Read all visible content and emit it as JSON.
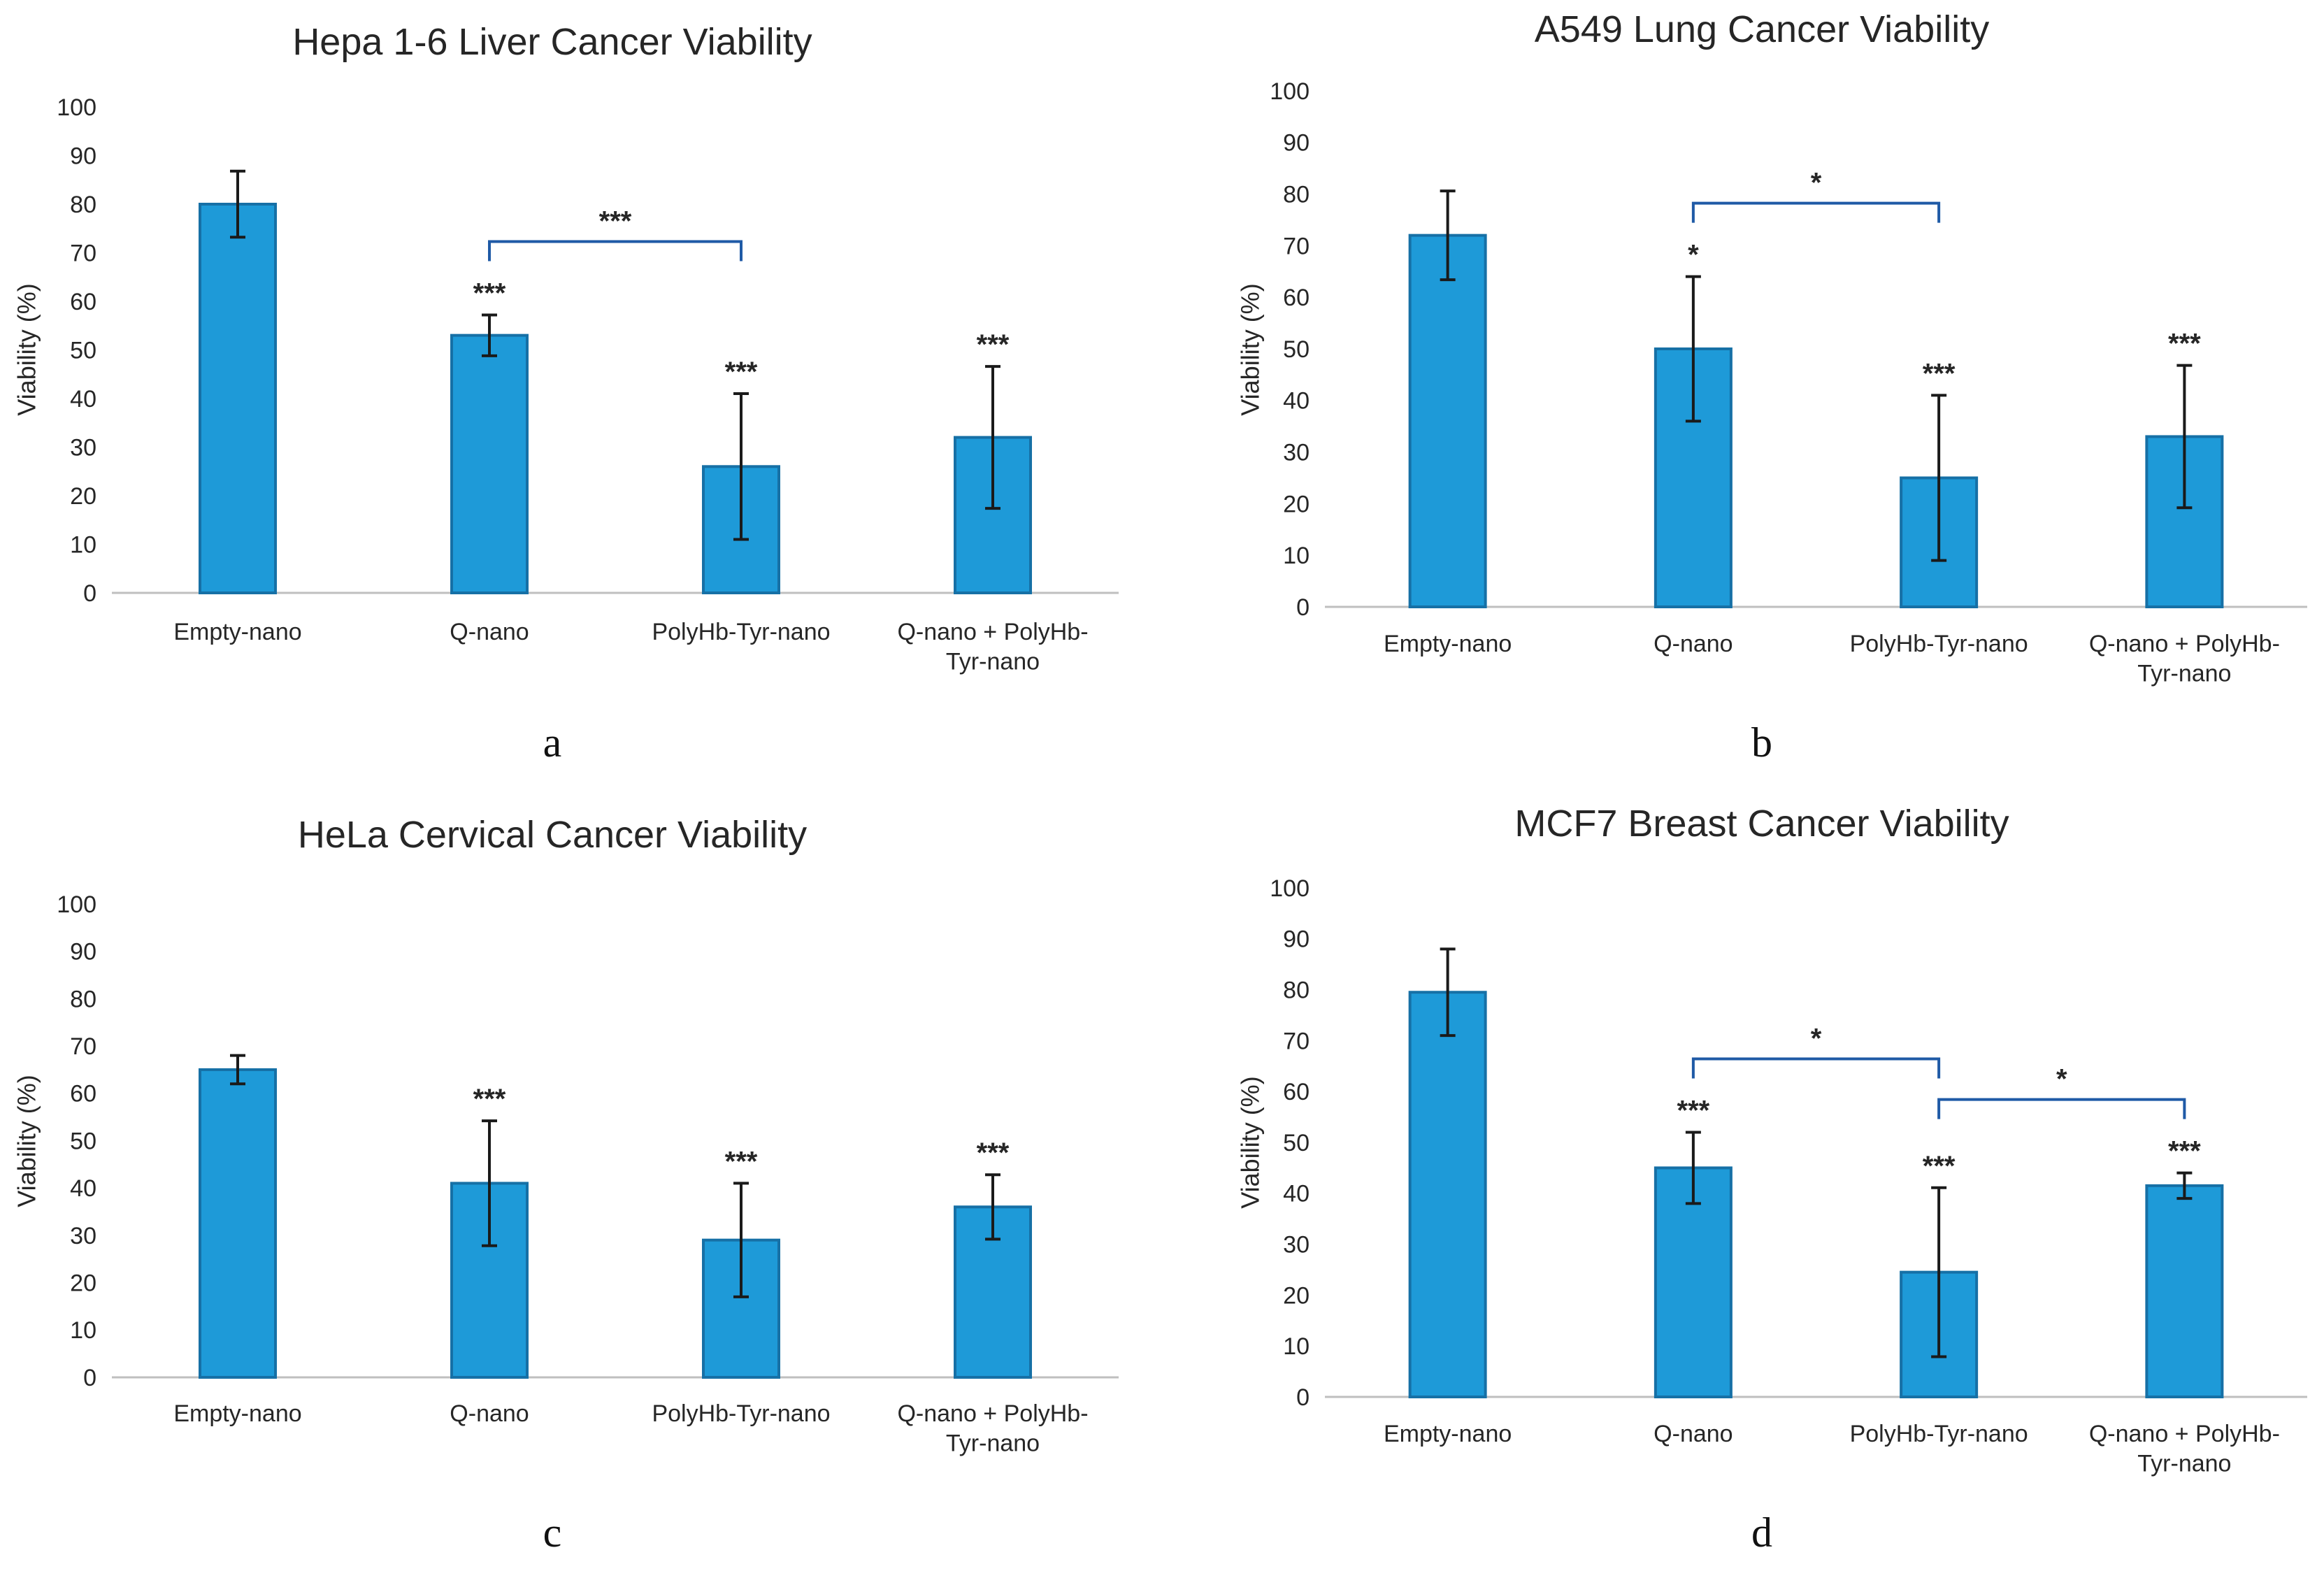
{
  "colors": {
    "bar": "#1E9AD8",
    "bar_border": "#1670A6",
    "bracket": "#1F5AA6",
    "axis": "#BFBFBF",
    "error": "#1a1a1a"
  },
  "chart_data": [
    {
      "panel": "a",
      "type": "bar",
      "title": "Hepa 1-6 Liver Cancer Viability",
      "ylabel": "Viability (%)",
      "ylim": [
        0,
        100
      ],
      "yticks": [
        0,
        10,
        20,
        30,
        40,
        50,
        60,
        70,
        80,
        90,
        100
      ],
      "categories": [
        [
          "Empty-nano"
        ],
        [
          "Q-nano"
        ],
        [
          "PolyHb-Tyr-nano"
        ],
        [
          "Q-nano + PolyHb-",
          "Tyr-nano"
        ]
      ],
      "values": [
        80,
        53,
        26,
        32
      ],
      "errors": [
        6.8,
        4.2,
        15,
        14.6
      ],
      "significance": [
        "",
        "***",
        "***",
        "***"
      ],
      "brackets": [
        {
          "from": 1,
          "to": 2,
          "label": "***"
        }
      ]
    },
    {
      "panel": "b",
      "type": "bar",
      "title": "A549 Lung Cancer Viability",
      "ylabel": "Viability (%)",
      "ylim": [
        0,
        100
      ],
      "yticks": [
        0,
        10,
        20,
        30,
        40,
        50,
        60,
        70,
        80,
        90,
        100
      ],
      "categories": [
        [
          "Empty-nano"
        ],
        [
          "Q-nano"
        ],
        [
          "PolyHb-Tyr-nano"
        ],
        [
          "Q-nano + PolyHb-",
          "Tyr-nano"
        ]
      ],
      "values": [
        72,
        50,
        25,
        33
      ],
      "errors": [
        8.6,
        14,
        16,
        13.8
      ],
      "significance": [
        "",
        "*",
        "***",
        "***"
      ],
      "brackets": [
        {
          "from": 1,
          "to": 2,
          "label": "*"
        }
      ]
    },
    {
      "panel": "c",
      "type": "bar",
      "title": "HeLa Cervical Cancer Viability",
      "ylabel": "Viability (%)",
      "ylim": [
        0,
        100
      ],
      "yticks": [
        0,
        10,
        20,
        30,
        40,
        50,
        60,
        70,
        80,
        90,
        100
      ],
      "categories": [
        [
          "Empty-nano"
        ],
        [
          "Q-nano"
        ],
        [
          "PolyHb-Tyr-nano"
        ],
        [
          "Q-nano + PolyHb-",
          "Tyr-nano"
        ]
      ],
      "values": [
        65,
        41,
        29,
        36
      ],
      "errors": [
        3,
        13.2,
        12,
        6.8
      ],
      "significance": [
        "",
        "***",
        "***",
        "***"
      ],
      "brackets": []
    },
    {
      "panel": "d",
      "type": "bar",
      "title": "MCF7 Breast Cancer Viability",
      "ylabel": "Viability (%)",
      "ylim": [
        0,
        100
      ],
      "yticks": [
        0,
        10,
        20,
        30,
        40,
        50,
        60,
        70,
        80,
        90,
        100
      ],
      "categories": [
        [
          "Empty-nano"
        ],
        [
          "Q-nano"
        ],
        [
          "PolyHb-Tyr-nano"
        ],
        [
          "Q-nano + PolyHb-",
          "Tyr-nano"
        ]
      ],
      "values": [
        79.5,
        45,
        24.5,
        41.5
      ],
      "errors": [
        8.5,
        7,
        16.6,
        2.5
      ],
      "significance": [
        "",
        "***",
        "***",
        "***"
      ],
      "brackets": [
        {
          "from": 1,
          "to": 2,
          "label": "*"
        },
        {
          "from": 2,
          "to": 3,
          "label": "*"
        }
      ]
    }
  ]
}
